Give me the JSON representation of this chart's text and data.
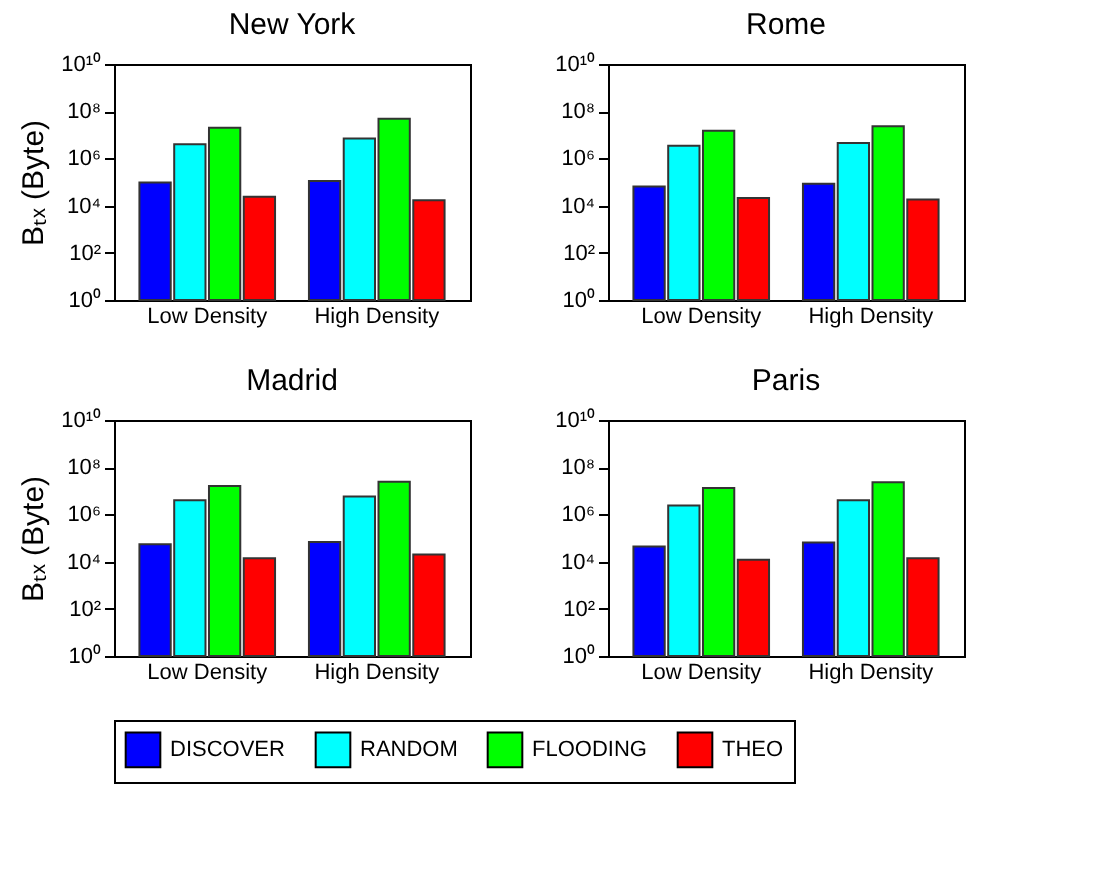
{
  "chart_data": [
    {
      "type": "bar",
      "title": "New York",
      "ylabel": "Bₜₓ (Byte)",
      "categories": [
        "Low Density",
        "High Density"
      ],
      "log": true,
      "legend": "bottom",
      "ylim": [
        1,
        10000000000
      ],
      "yticks": [
        {
          "value": 1,
          "label": "10⁰"
        },
        {
          "value": 100,
          "label": "10²"
        },
        {
          "value": 10000,
          "label": "10⁴"
        },
        {
          "value": 1000000,
          "label": "10⁶"
        },
        {
          "value": 100000000,
          "label": "10⁸"
        },
        {
          "value": 10000000000,
          "label": "10¹⁰"
        }
      ],
      "series": [
        {
          "name": "DISCOVER",
          "color": "#0000ff",
          "values": [
            95000,
            110000
          ]
        },
        {
          "name": "RANDOM",
          "color": "#00ffff",
          "values": [
            4000000,
            7000000
          ]
        },
        {
          "name": "FLOODING",
          "color": "#00ff00",
          "values": [
            20000000,
            48000000
          ]
        },
        {
          "name": "THEO",
          "color": "#ff0000",
          "values": [
            24000,
            17000
          ]
        }
      ]
    },
    {
      "type": "bar",
      "title": "Rome",
      "categories": [
        "Low Density",
        "High Density"
      ],
      "log": true,
      "legend": "bottom",
      "ylim": [
        1,
        10000000000
      ],
      "yticks": [
        {
          "value": 1,
          "label": "10⁰"
        },
        {
          "value": 100,
          "label": "10²"
        },
        {
          "value": 10000,
          "label": "10⁴"
        },
        {
          "value": 1000000,
          "label": "10⁶"
        },
        {
          "value": 100000000,
          "label": "10⁸"
        },
        {
          "value": 10000000000,
          "label": "10¹⁰"
        }
      ],
      "series": [
        {
          "name": "DISCOVER",
          "color": "#0000ff",
          "values": [
            65000,
            85000
          ]
        },
        {
          "name": "RANDOM",
          "color": "#00ffff",
          "values": [
            3400000,
            4500000
          ]
        },
        {
          "name": "FLOODING",
          "color": "#00ff00",
          "values": [
            15000000,
            23000000
          ]
        },
        {
          "name": "THEO",
          "color": "#ff0000",
          "values": [
            21000,
            18000
          ]
        }
      ]
    },
    {
      "type": "bar",
      "title": "Madrid",
      "ylabel": "Bₜₓ (Byte)",
      "categories": [
        "Low Density",
        "High Density"
      ],
      "log": true,
      "legend": "bottom",
      "ylim": [
        1,
        10000000000
      ],
      "yticks": [
        {
          "value": 1,
          "label": "10⁰"
        },
        {
          "value": 100,
          "label": "10²"
        },
        {
          "value": 10000,
          "label": "10⁴"
        },
        {
          "value": 1000000,
          "label": "10⁶"
        },
        {
          "value": 100000000,
          "label": "10⁸"
        },
        {
          "value": 10000000000,
          "label": "10¹⁰"
        }
      ],
      "series": [
        {
          "name": "DISCOVER",
          "color": "#0000ff",
          "values": [
            55000,
            68000
          ]
        },
        {
          "name": "RANDOM",
          "color": "#00ffff",
          "values": [
            4000000,
            5800000
          ]
        },
        {
          "name": "FLOODING",
          "color": "#00ff00",
          "values": [
            16000000,
            24000000
          ]
        },
        {
          "name": "THEO",
          "color": "#ff0000",
          "values": [
            14000,
            20000
          ]
        }
      ]
    },
    {
      "type": "bar",
      "title": "Paris",
      "categories": [
        "Low Density",
        "High Density"
      ],
      "log": true,
      "legend": "bottom",
      "ylim": [
        1,
        10000000000
      ],
      "yticks": [
        {
          "value": 1,
          "label": "10⁰"
        },
        {
          "value": 100,
          "label": "10²"
        },
        {
          "value": 10000,
          "label": "10⁴"
        },
        {
          "value": 1000000,
          "label": "10⁶"
        },
        {
          "value": 100000000,
          "label": "10⁸"
        },
        {
          "value": 10000000000,
          "label": "10¹⁰"
        }
      ],
      "series": [
        {
          "name": "DISCOVER",
          "color": "#0000ff",
          "values": [
            44000,
            65000
          ]
        },
        {
          "name": "RANDOM",
          "color": "#00ffff",
          "values": [
            2400000,
            4000000
          ]
        },
        {
          "name": "FLOODING",
          "color": "#00ff00",
          "values": [
            13000000,
            23000000
          ]
        },
        {
          "name": "THEO",
          "color": "#ff0000",
          "values": [
            12000,
            14000
          ]
        }
      ]
    }
  ]
}
